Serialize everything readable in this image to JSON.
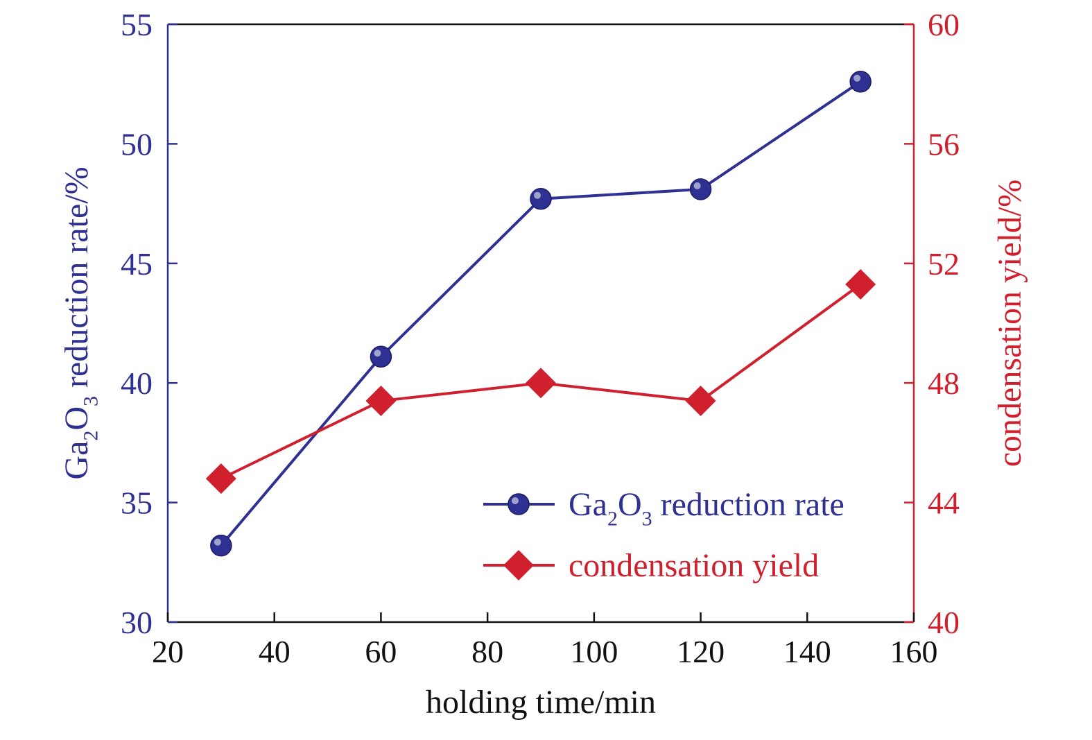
{
  "chart_data": {
    "type": "line",
    "xlabel": "holding time/min",
    "ylabel_left": {
      "main": "Ga",
      "sub1": "2",
      "mid": "O",
      "sub2": "3",
      "rest": " reduction rate/%"
    },
    "ylabel_right": "condensation yield/%",
    "xlim": [
      20,
      160
    ],
    "xticks": [
      "20",
      "40",
      "60",
      "80",
      "100",
      "120",
      "140",
      "160"
    ],
    "ylim_left": [
      30,
      55
    ],
    "yticks_left": [
      "30",
      "35",
      "40",
      "45",
      "50",
      "55"
    ],
    "ylim_right": [
      40,
      60
    ],
    "yticks_right": [
      "40",
      "44",
      "48",
      "52",
      "56",
      "60"
    ],
    "legend_position": "bottom-right",
    "series": [
      {
        "name": "Ga2O3 reduction rate",
        "legend_label": {
          "main": "Ga",
          "sub1": "2",
          "mid": "O",
          "sub2": "3",
          "rest": " reduction rate"
        },
        "axis": "left",
        "marker": "circle",
        "color": "#2e3192",
        "x": [
          30,
          60,
          90,
          120,
          150
        ],
        "values": [
          33.2,
          41.1,
          47.7,
          48.1,
          52.6
        ]
      },
      {
        "name": "condensation yield",
        "legend_label": {
          "main": "condensation yield"
        },
        "axis": "right",
        "marker": "diamond",
        "color": "#d0202e",
        "x": [
          30,
          60,
          90,
          120,
          150
        ],
        "values": [
          44.8,
          47.4,
          48.0,
          47.4,
          51.3
        ]
      }
    ],
    "colors": {
      "left_axis": "#2e3192",
      "right_axis": "#d0202e",
      "x_axis": "#111111"
    }
  }
}
